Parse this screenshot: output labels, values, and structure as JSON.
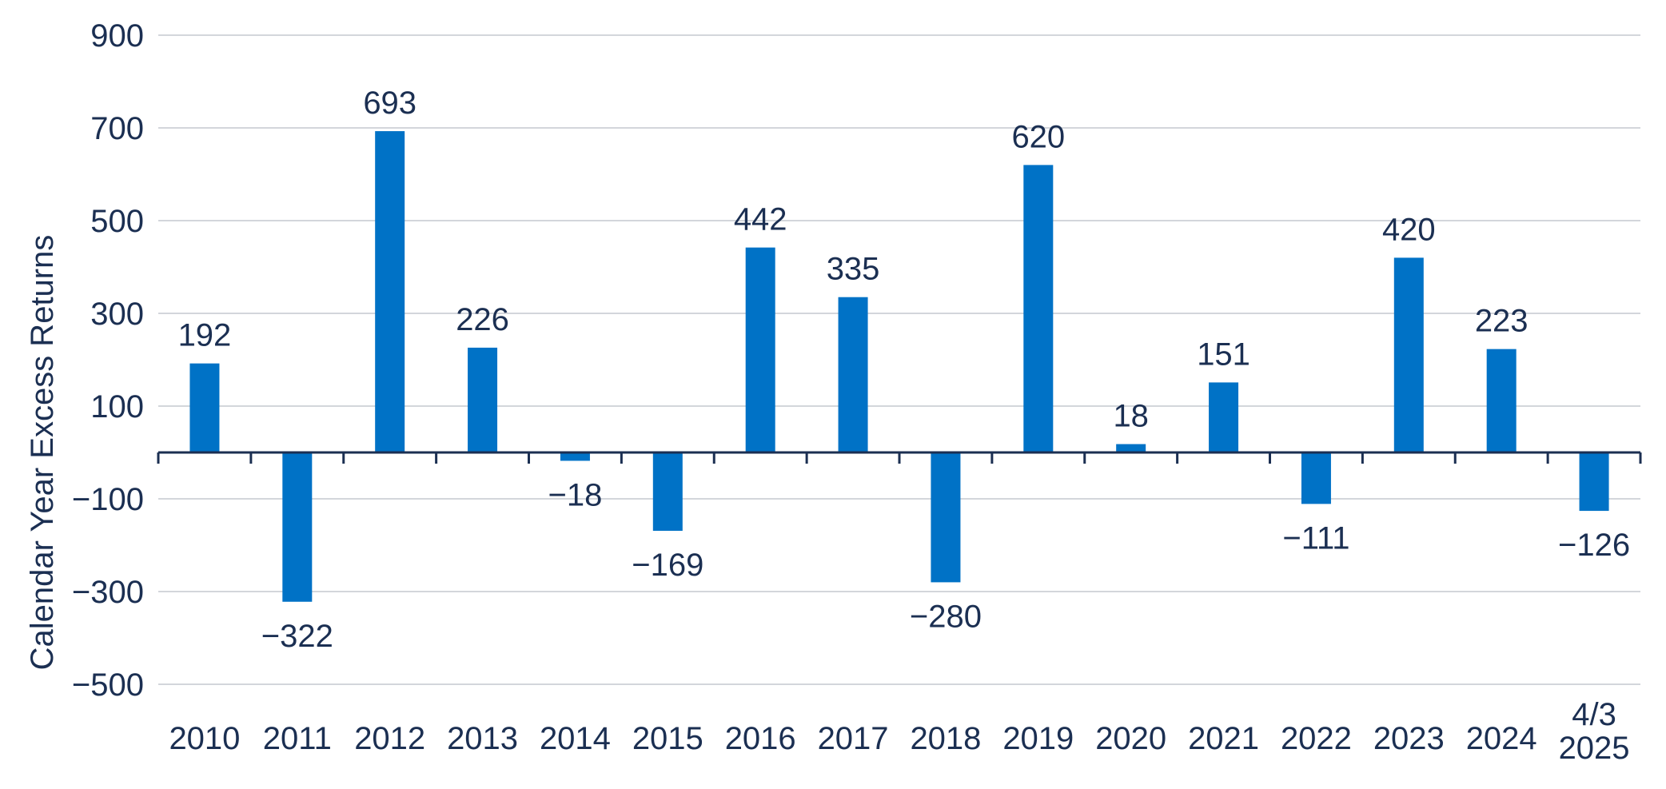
{
  "chart_data": {
    "type": "bar",
    "title": "",
    "xlabel": "",
    "ylabel": "Calendar Year Excess Returns",
    "categories": [
      "2010",
      "2011",
      "2012",
      "2013",
      "2014",
      "2015",
      "2016",
      "2017",
      "2018",
      "2019",
      "2020",
      "2021",
      "2022",
      "2023",
      "2024",
      "4/3\n2025"
    ],
    "values": [
      192,
      -322,
      693,
      226,
      -18,
      -169,
      442,
      335,
      -280,
      620,
      18,
      151,
      -111,
      420,
      223,
      -126
    ],
    "value_labels": [
      "192",
      "-322",
      "693",
      "226",
      "-18",
      "-169",
      "442",
      "335",
      "-280",
      "620",
      "18",
      "151",
      "-111",
      "420",
      "223",
      "-126"
    ],
    "ylim": [
      -500,
      900
    ],
    "yticks": [
      900,
      700,
      500,
      300,
      100,
      -100,
      -300,
      -500
    ],
    "ytick_labels": [
      "900",
      "700",
      "500",
      "300",
      "100",
      "-100",
      "-300",
      "-500"
    ],
    "grid": true,
    "legend": "none",
    "colors": {
      "bar": "#0072c6",
      "text": "#1b2f52",
      "grid": "#d3d6db",
      "axis": "#1b2f52"
    }
  }
}
